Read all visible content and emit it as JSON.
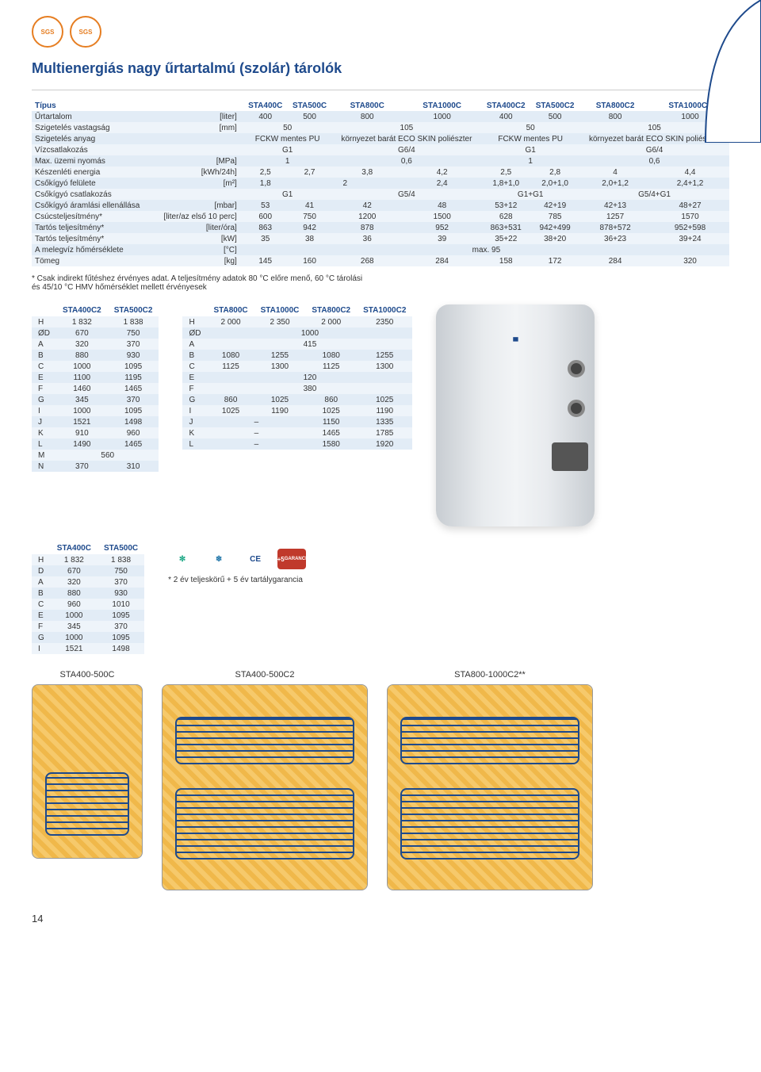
{
  "badges": [
    "SGS",
    "SGS"
  ],
  "title": "Multienergiás nagy űrtartalmú (szolár) tárolók",
  "main": {
    "head": [
      "Típus",
      "",
      "STA400C",
      "STA500C",
      "STA800C",
      "STA1000C",
      "STA400C2",
      "STA500C2",
      "STA800C2",
      "STA1000C2"
    ],
    "rows": [
      {
        "label": "Űrtartalom",
        "unit": "[liter]",
        "v": [
          "400",
          "500",
          "800",
          "1000",
          "400",
          "500",
          "800",
          "1000"
        ]
      },
      {
        "label": "Szigetelés vastagság",
        "unit": "[mm]",
        "span": [
          "50",
          "105",
          "50",
          "105"
        ],
        "cols": [
          2,
          2,
          2,
          2
        ]
      },
      {
        "label": "Szigetelés anyag",
        "unit": "",
        "span": [
          "FCKW mentes PU",
          "környezet barát ECO SKIN poliészter",
          "FCKW mentes PU",
          "környezet barát ECO SKIN poliészter"
        ],
        "cols": [
          2,
          2,
          2,
          2
        ]
      },
      {
        "label": "Vízcsatlakozás",
        "unit": "",
        "span": [
          "G1",
          "G6/4",
          "G1",
          "G6/4"
        ],
        "cols": [
          2,
          2,
          2,
          2
        ]
      },
      {
        "label": "Max. üzemi nyomás",
        "unit": "[MPa]",
        "span": [
          "1",
          "0,6",
          "1",
          "0,6"
        ],
        "cols": [
          2,
          2,
          2,
          2
        ]
      },
      {
        "label": "Készenléti energia",
        "unit": "[kWh/24h]",
        "v": [
          "2,5",
          "2,7",
          "3,8",
          "4,2",
          "2,5",
          "2,8",
          "4",
          "4,4"
        ]
      },
      {
        "label": "Csőkígyó felülete",
        "unit": "[m²]",
        "v": [
          "1,8",
          "2",
          "",
          "2,4",
          "1,8+1,0",
          "2,0+1,0",
          "2,0+1,2",
          "2,4+1,2"
        ],
        "merge23": true
      },
      {
        "label": "Csőkígyó csatlakozás",
        "unit": "",
        "span": [
          "G1",
          "G5/4",
          "G1+G1",
          "G5/4+G1"
        ],
        "cols": [
          2,
          2,
          2,
          2
        ]
      },
      {
        "label": "Csőkígyó áramlási ellenállása",
        "unit": "[mbar]",
        "v": [
          "53",
          "41",
          "42",
          "48",
          "53+12",
          "42+19",
          "42+13",
          "48+27"
        ]
      },
      {
        "label": "Csúcsteljesítmény*",
        "unit": "[liter/az első 10 perc]",
        "v": [
          "600",
          "750",
          "1200",
          "1500",
          "628",
          "785",
          "1257",
          "1570"
        ]
      },
      {
        "label": "Tartós teljesítmény*",
        "unit": "[liter/óra]",
        "v": [
          "863",
          "942",
          "878",
          "952",
          "863+531",
          "942+499",
          "878+572",
          "952+598"
        ]
      },
      {
        "label": "Tartós teljesítmény*",
        "unit": "[kW]",
        "v": [
          "35",
          "38",
          "36",
          "39",
          "35+22",
          "38+20",
          "36+23",
          "39+24"
        ]
      },
      {
        "label": "A melegvíz hőmérséklete",
        "unit": "[°C]",
        "span": [
          "max. 95"
        ],
        "cols": [
          8
        ]
      },
      {
        "label": "Tömeg",
        "unit": "[kg]",
        "v": [
          "145",
          "160",
          "268",
          "284",
          "158",
          "172",
          "284",
          "320"
        ]
      }
    ]
  },
  "note": "* Csak indirekt fűtéshez érvényes adat. A teljesítmény adatok 80 °C előre menő, 60 °C tárolási és 45/10 °C HMV hőmérséklet mellett érvényesek",
  "dim1": {
    "head": [
      "",
      "STA400C2",
      "STA500C2"
    ],
    "rows": [
      [
        "H",
        "1 832",
        "1 838"
      ],
      [
        "ØD",
        "670",
        "750"
      ],
      [
        "A",
        "320",
        "370"
      ],
      [
        "B",
        "880",
        "930"
      ],
      [
        "C",
        "1000",
        "1095"
      ],
      [
        "E",
        "1100",
        "1195"
      ],
      [
        "F",
        "1460",
        "1465"
      ],
      [
        "G",
        "345",
        "370"
      ],
      [
        "I",
        "1000",
        "1095"
      ],
      [
        "J",
        "1521",
        "1498"
      ],
      [
        "K",
        "910",
        "960"
      ],
      [
        "L",
        "1490",
        "1465"
      ],
      [
        "M",
        "560",
        ""
      ],
      [
        "N",
        "370",
        "310"
      ]
    ],
    "merge_last2": 12
  },
  "dim2": {
    "head": [
      "",
      "STA800C",
      "STA1000C",
      "STA800C2",
      "STA1000C2"
    ],
    "rows": [
      [
        "H",
        "2 000",
        "2 350",
        "2 000",
        "2350"
      ],
      [
        "ØD",
        "1000",
        "",
        "",
        ""
      ],
      [
        "A",
        "415",
        "",
        "",
        ""
      ],
      [
        "B",
        "1080",
        "1255",
        "1080",
        "1255"
      ],
      [
        "C",
        "1125",
        "1300",
        "1125",
        "1300"
      ],
      [
        "E",
        "120",
        "",
        "",
        ""
      ],
      [
        "F",
        "380",
        "",
        "",
        ""
      ],
      [
        "G",
        "860",
        "1025",
        "860",
        "1025"
      ],
      [
        "I",
        "1025",
        "1190",
        "1025",
        "1190"
      ],
      [
        "J",
        "–",
        "",
        "1150",
        "1335"
      ],
      [
        "K",
        "–",
        "",
        "1465",
        "1785"
      ],
      [
        "L",
        "–",
        "",
        "1580",
        "1920"
      ]
    ],
    "fullspan_rows": [
      1,
      2,
      5,
      6
    ],
    "halfspan_rows": [
      9,
      10,
      11
    ]
  },
  "dim3": {
    "head": [
      "",
      "STA400C",
      "STA500C"
    ],
    "rows": [
      [
        "H",
        "1 832",
        "1 838"
      ],
      [
        "D",
        "670",
        "750"
      ],
      [
        "A",
        "320",
        "370"
      ],
      [
        "B",
        "880",
        "930"
      ],
      [
        "C",
        "960",
        "1010"
      ],
      [
        "E",
        "1000",
        "1095"
      ],
      [
        "F",
        "345",
        "370"
      ],
      [
        "G",
        "1000",
        "1095"
      ],
      [
        "I",
        "1521",
        "1498"
      ]
    ]
  },
  "cert": {
    "ce": "CE",
    "g": "2+5",
    "gtext": "GARANCIA"
  },
  "warranty": "* 2 év teljeskörű + 5 év tartálygarancia",
  "diagrams": {
    "d1": "STA400-500C",
    "d2": "STA400-500C2",
    "d3": "STA800-1000C2**"
  },
  "page": "14"
}
